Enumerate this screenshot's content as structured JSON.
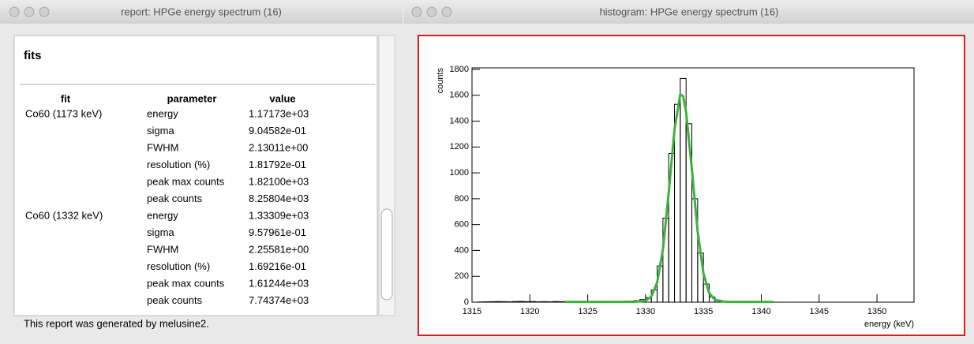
{
  "report_window": {
    "title": "report: HPGe energy spectrum (16)",
    "heading": "fits",
    "columns": [
      "fit",
      "parameter",
      "value"
    ],
    "fits": [
      {
        "fit": "Co60 (1173 keV)",
        "parameters": [
          {
            "name": "energy",
            "value": "1.17173e+03"
          },
          {
            "name": "sigma",
            "value": "9.04582e-01"
          },
          {
            "name": "FWHM",
            "value": "2.13011e+00"
          },
          {
            "name": "resolution (%)",
            "value": "1.81792e-01"
          },
          {
            "name": "peak max counts",
            "value": "1.82100e+03"
          },
          {
            "name": "peak counts",
            "value": "8.25804e+03"
          }
        ]
      },
      {
        "fit": "Co60 (1332 keV)",
        "parameters": [
          {
            "name": "energy",
            "value": "1.33309e+03"
          },
          {
            "name": "sigma",
            "value": "9.57961e-01"
          },
          {
            "name": "FWHM",
            "value": "2.25581e+00"
          },
          {
            "name": "resolution (%)",
            "value": "1.69216e-01"
          },
          {
            "name": "peak max counts",
            "value": "1.61244e+03"
          },
          {
            "name": "peak counts",
            "value": "7.74374e+03"
          }
        ]
      }
    ],
    "footer": "This report was generated by melusine2."
  },
  "histogram_window": {
    "title": "histogram: HPGe energy spectrum (16)"
  },
  "chart_data": {
    "type": "histogram",
    "x_label": "energy (keV)",
    "y_label": "counts",
    "bins": [
      1315,
      1315.5,
      1316,
      1316.5,
      1317,
      1317.5,
      1318,
      1318.5,
      1319,
      1319.5,
      1320,
      1320.5,
      1321,
      1321.5,
      1322,
      1322.5,
      1323,
      1323.5,
      1324,
      1324.5,
      1325,
      1325.5,
      1326,
      1326.5,
      1327,
      1327.5,
      1328,
      1328.5,
      1329,
      1329.5,
      1330,
      1330.5,
      1331,
      1331.5,
      1332,
      1332.5,
      1333,
      1333.5,
      1334,
      1334.5,
      1335,
      1335.5,
      1336,
      1336.5,
      1337,
      1337.5,
      1338,
      1338.5,
      1339,
      1339.5,
      1340,
      1340.5,
      1341
    ],
    "values": [
      0,
      2,
      3,
      4,
      5,
      4,
      3,
      5,
      6,
      4,
      5,
      3,
      4,
      3,
      5,
      4,
      6,
      5,
      3,
      4,
      5,
      6,
      4,
      5,
      7,
      6,
      8,
      9,
      12,
      20,
      35,
      95,
      280,
      650,
      1150,
      1530,
      1730,
      1380,
      800,
      380,
      140,
      40,
      15,
      8,
      6,
      5,
      4,
      5,
      3,
      4,
      2,
      3
    ],
    "color": "#000000",
    "fit": {
      "color": "#3cb33c",
      "x": [
        1323,
        1328,
        1329,
        1330,
        1330.5,
        1331,
        1331.5,
        1332,
        1332.5,
        1333,
        1333.25,
        1333.5,
        1334,
        1334.5,
        1335,
        1335.5,
        1336,
        1337,
        1341
      ],
      "values": [
        2,
        2,
        2,
        11,
        44,
        152,
        408,
        846,
        1335,
        1607,
        1592,
        1472,
        1029,
        548,
        224,
        70,
        18,
        2,
        2
      ]
    },
    "xlim": [
      1315,
      1353.2
    ],
    "ylim": [
      0,
      1812
    ],
    "xticks": [
      1315,
      1320,
      1325,
      1330,
      1335,
      1340,
      1345,
      1350
    ],
    "yticks": [
      0,
      200,
      400,
      600,
      800,
      1000,
      1200,
      1400,
      1600,
      1800
    ]
  }
}
